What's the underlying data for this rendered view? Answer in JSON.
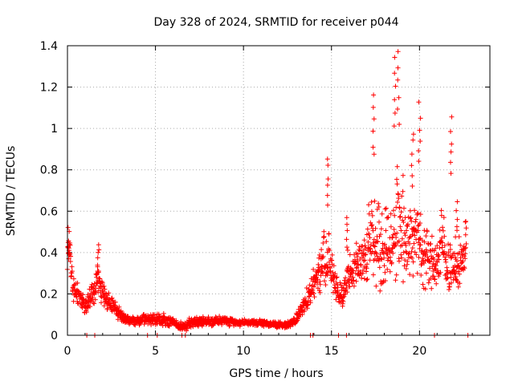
{
  "chart_data": {
    "type": "scatter",
    "title": "Day 328 of 2024, SRMTID for receiver p044",
    "xlabel": "GPS time / hours",
    "ylabel": "SRMTID / TECUs",
    "xlim": [
      0,
      24
    ],
    "ylim": [
      0,
      1.4
    ],
    "xticks": [
      0,
      5,
      10,
      15,
      20
    ],
    "xtick_labels": [
      "0",
      "5",
      "10",
      "15",
      "20"
    ],
    "yticks": [
      0,
      0.2,
      0.4,
      0.6,
      0.8,
      1.0,
      1.2,
      1.4
    ],
    "ytick_labels": [
      "0",
      "0.2",
      "0.4",
      "0.6",
      "0.8",
      "1",
      "1.2",
      "1.4"
    ],
    "grid": true,
    "marker": "+",
    "series_color": "#ff0000",
    "series": [
      {
        "name": "SRMTID",
        "envelope_x": [
          0.0,
          0.1,
          0.3,
          0.6,
          1.0,
          1.3,
          1.7,
          2.0,
          2.5,
          3.0,
          3.5,
          4.0,
          4.5,
          5.0,
          5.5,
          6.0,
          6.5,
          7.0,
          8.0,
          9.0,
          10.0,
          11.0,
          12.0,
          12.5,
          13.0,
          13.5,
          14.0,
          14.3,
          14.6,
          14.8,
          15.0,
          15.3,
          15.6,
          16.0,
          16.5,
          17.0,
          17.3,
          17.6,
          18.0,
          18.5,
          18.8,
          19.0,
          19.3,
          19.6,
          20.0,
          20.3,
          20.6,
          21.0,
          21.3,
          21.6,
          22.0,
          22.3,
          22.6
        ],
        "envelope_center": [
          0.38,
          0.45,
          0.22,
          0.2,
          0.13,
          0.18,
          0.28,
          0.2,
          0.15,
          0.1,
          0.07,
          0.07,
          0.08,
          0.08,
          0.07,
          0.06,
          0.04,
          0.06,
          0.07,
          0.07,
          0.06,
          0.06,
          0.05,
          0.05,
          0.08,
          0.15,
          0.25,
          0.3,
          0.35,
          0.4,
          0.3,
          0.22,
          0.2,
          0.28,
          0.35,
          0.4,
          0.5,
          0.45,
          0.4,
          0.45,
          0.55,
          0.5,
          0.45,
          0.5,
          0.45,
          0.4,
          0.35,
          0.35,
          0.45,
          0.35,
          0.3,
          0.35,
          0.4
        ],
        "envelope_spread": [
          0.1,
          0.08,
          0.08,
          0.07,
          0.05,
          0.08,
          0.1,
          0.08,
          0.06,
          0.04,
          0.03,
          0.03,
          0.04,
          0.04,
          0.04,
          0.03,
          0.03,
          0.03,
          0.03,
          0.03,
          0.02,
          0.02,
          0.02,
          0.02,
          0.04,
          0.07,
          0.12,
          0.15,
          0.2,
          0.22,
          0.15,
          0.1,
          0.09,
          0.12,
          0.15,
          0.18,
          0.3,
          0.3,
          0.25,
          0.3,
          0.45,
          0.35,
          0.28,
          0.3,
          0.25,
          0.22,
          0.2,
          0.18,
          0.25,
          0.2,
          0.15,
          0.15,
          0.15
        ],
        "peaks": [
          [
            0.05,
            0.53
          ],
          [
            1.75,
            0.46
          ],
          [
            14.8,
            0.87
          ],
          [
            15.9,
            0.57
          ],
          [
            17.4,
            1.17
          ],
          [
            18.6,
            1.36
          ],
          [
            18.8,
            1.38
          ],
          [
            19.6,
            1.0
          ],
          [
            20.0,
            1.13
          ],
          [
            21.8,
            1.06
          ],
          [
            22.1,
            0.65
          ],
          [
            22.6,
            0.58
          ]
        ],
        "zero_points_x": [
          1.1,
          1.55,
          4.55,
          5.1,
          6.5,
          6.7,
          13.8,
          13.95,
          15.4,
          15.85,
          20.85,
          22.75
        ]
      }
    ]
  }
}
